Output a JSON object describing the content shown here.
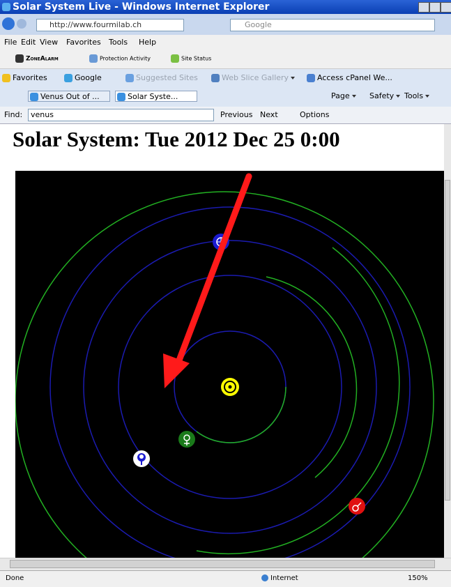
{
  "window": {
    "title": "Solar System Live - Windows Internet Explorer"
  },
  "address_bar": {
    "url": "http://www.fourmilab.ch",
    "search": "Google"
  },
  "menu": [
    "File",
    "Edit",
    "View",
    "Favorites",
    "Tools",
    "Help"
  ],
  "toolbar": [
    "ZoneAlarm",
    "Protection Activity",
    "Site Status"
  ],
  "favorites_bar": [
    "Favorites",
    "Google",
    "Suggested Sites",
    "Web Slice Gallery",
    "Access cPanel We..."
  ],
  "tabs": [
    "Venus Out of ...",
    "Solar Syste..."
  ],
  "command_bar": [
    "Page",
    "Safety",
    "Tools"
  ],
  "find_bar": {
    "label": "Find:",
    "query": "venus",
    "buttons": [
      "Previous",
      "Next",
      "Options"
    ]
  },
  "page": {
    "heading": "Solar System: Tue 2012 Dec 25 0:00"
  },
  "status_bar": {
    "status": "Done",
    "zone": "Internet",
    "zoom": "150%"
  }
}
